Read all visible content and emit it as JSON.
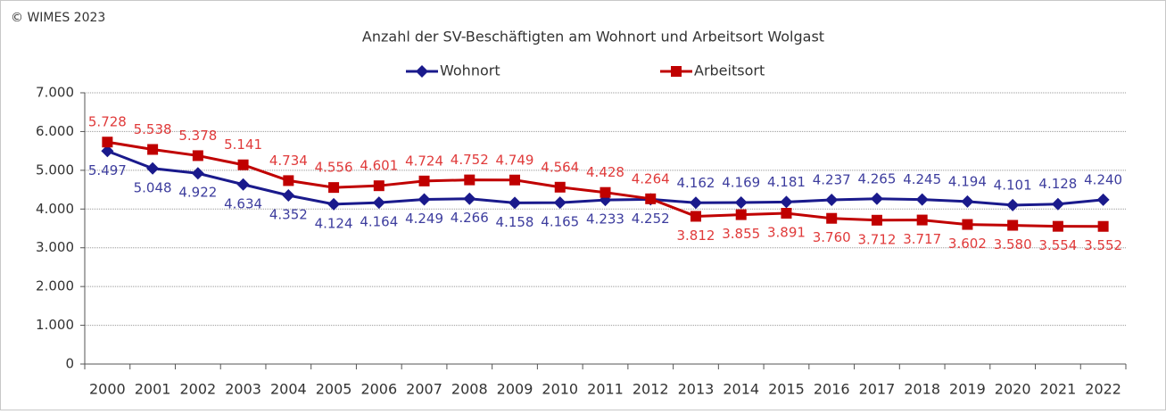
{
  "chart_data": {
    "type": "line",
    "copyright": "© WIMES 2023",
    "title": "Anzahl der SV-Beschäftigten am Wohnort und Arbeitsort Wolgast",
    "categories": [
      "2000",
      "2001",
      "2002",
      "2003",
      "2004",
      "2005",
      "2006",
      "2007",
      "2008",
      "2009",
      "2010",
      "2011",
      "2012",
      "2013",
      "2014",
      "2015",
      "2016",
      "2017",
      "2018",
      "2019",
      "2020",
      "2021",
      "2022"
    ],
    "series": [
      {
        "name": "Wohnort",
        "color": "#1a1a8c",
        "label_color": "#3d3d9e",
        "marker": "diamond",
        "values": [
          5497,
          5048,
          4922,
          4634,
          4352,
          4124,
          4164,
          4249,
          4266,
          4158,
          4165,
          4233,
          4252,
          4162,
          4169,
          4181,
          4237,
          4265,
          4245,
          4194,
          4101,
          4128,
          4240
        ],
        "value_labels": [
          "5.497",
          "5.048",
          "4.922",
          "4.634",
          "4.352",
          "4.124",
          "4.164",
          "4.249",
          "4.266",
          "4.158",
          "4.165",
          "4.233",
          "4.252",
          "4.162",
          "4.169",
          "4.181",
          "4.237",
          "4.265",
          "4.245",
          "4.194",
          "4.101",
          "4.128",
          "4.240"
        ]
      },
      {
        "name": "Arbeitsort",
        "color": "#c00000",
        "label_color": "#e03a3a",
        "marker": "square",
        "values": [
          5728,
          5538,
          5378,
          5141,
          4734,
          4556,
          4601,
          4724,
          4752,
          4749,
          4564,
          4428,
          4264,
          3812,
          3855,
          3891,
          3760,
          3712,
          3717,
          3602,
          3580,
          3554,
          3552
        ],
        "value_labels": [
          "5.728",
          "5.538",
          "5.378",
          "5.141",
          "4.734",
          "4.556",
          "4.601",
          "4.724",
          "4.752",
          "4.749",
          "4.564",
          "4.428",
          "4.264",
          "3.812",
          "3.855",
          "3.891",
          "3.760",
          "3.712",
          "3.717",
          "3.602",
          "3.580",
          "3.554",
          "3.552"
        ]
      }
    ],
    "ylim": [
      0,
      7000
    ],
    "yticks": [
      0,
      {
        "value": 1000,
        "label": "1.000"
      },
      {
        "value": 2000,
        "label": "2.000"
      },
      {
        "value": 3000,
        "label": "3.000"
      },
      {
        "value": 4000,
        "label": "4.000"
      },
      {
        "value": 5000,
        "label": "5.000"
      },
      {
        "value": 6000,
        "label": "6.000"
      },
      {
        "value": 7000,
        "label": "7.000"
      }
    ],
    "grid": true,
    "legend": "top"
  }
}
